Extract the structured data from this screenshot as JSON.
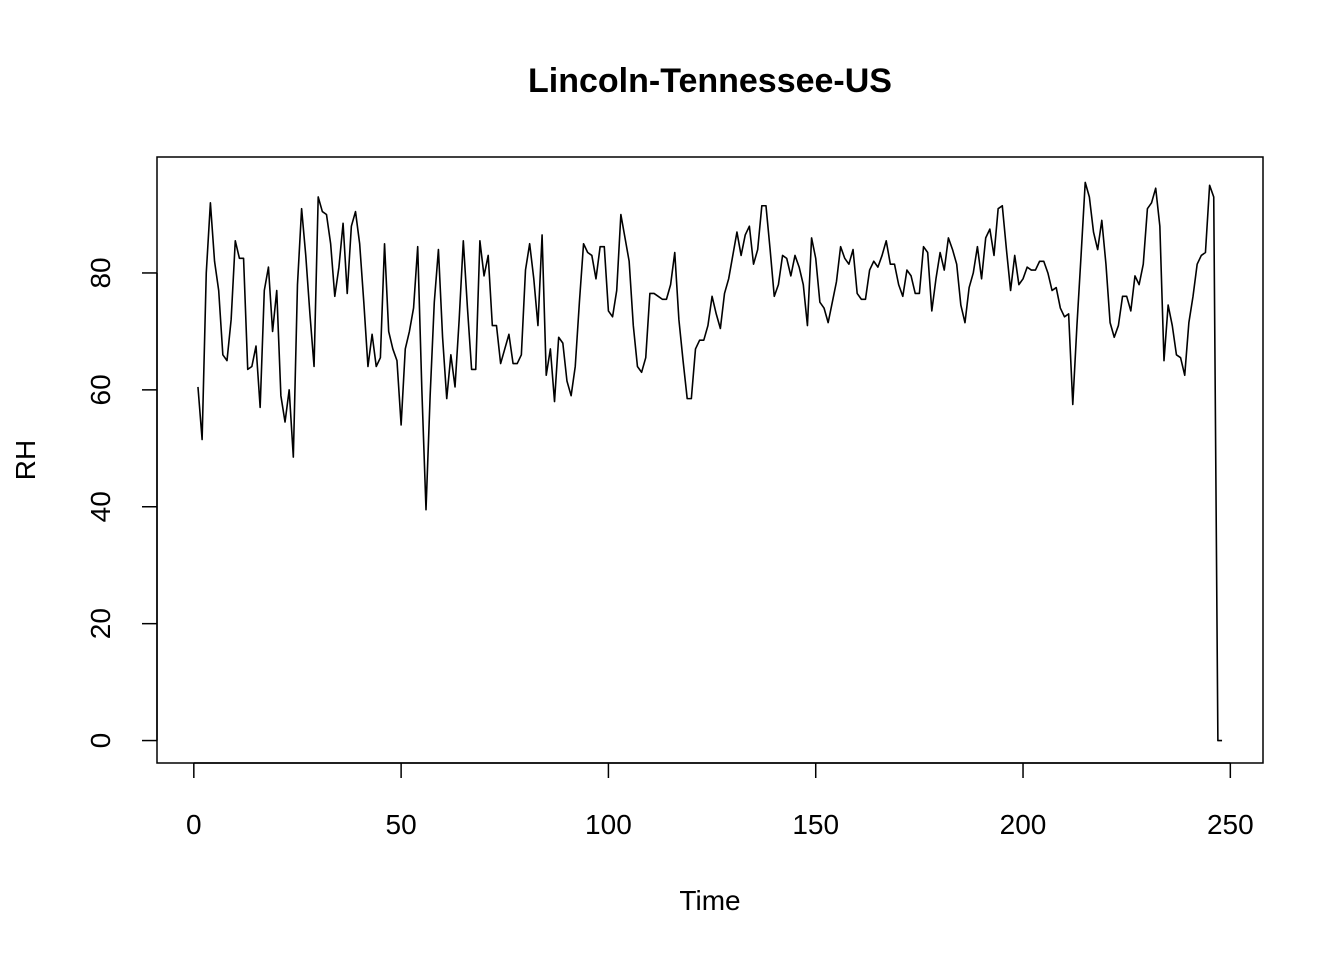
{
  "chart_data": {
    "type": "line",
    "title": "Lincoln-Tennessee-US",
    "x_label": "Time",
    "y_label": "RH",
    "x": [
      1,
      2,
      3,
      4,
      5,
      6,
      7,
      8,
      9,
      10,
      11,
      12,
      13,
      14,
      15,
      16,
      17,
      18,
      19,
      20,
      21,
      22,
      23,
      24,
      25,
      26,
      27,
      28,
      29,
      30,
      31,
      32,
      33,
      34,
      35,
      36,
      37,
      38,
      39,
      40,
      41,
      42,
      43,
      44,
      45,
      46,
      47,
      48,
      49,
      50,
      51,
      52,
      53,
      54,
      55,
      56,
      57,
      58,
      59,
      60,
      61,
      62,
      63,
      64,
      65,
      66,
      67,
      68,
      69,
      70,
      71,
      72,
      73,
      74,
      75,
      76,
      77,
      78,
      79,
      80,
      81,
      82,
      83,
      84,
      85,
      86,
      87,
      88,
      89,
      90,
      91,
      92,
      93,
      94,
      95,
      96,
      97,
      98,
      99,
      100,
      101,
      102,
      103,
      104,
      105,
      106,
      107,
      108,
      109,
      110,
      111,
      112,
      113,
      114,
      115,
      116,
      117,
      118,
      119,
      120,
      121,
      122,
      123,
      124,
      125,
      126,
      127,
      128,
      129,
      130,
      131,
      132,
      133,
      134,
      135,
      136,
      137,
      138,
      139,
      140,
      141,
      142,
      143,
      144,
      145,
      146,
      147,
      148,
      149,
      150,
      151,
      152,
      153,
      154,
      155,
      156,
      157,
      158,
      159,
      160,
      161,
      162,
      163,
      164,
      165,
      166,
      167,
      168,
      169,
      170,
      171,
      172,
      173,
      174,
      175,
      176,
      177,
      178,
      179,
      180,
      181,
      182,
      183,
      184,
      185,
      186,
      187,
      188,
      189,
      190,
      191,
      192,
      193,
      194,
      195,
      196,
      197,
      198,
      199,
      200,
      201,
      202,
      203,
      204,
      205,
      206,
      207,
      208,
      209,
      210,
      211,
      212,
      213,
      214,
      215,
      216,
      217,
      218,
      219,
      220,
      221,
      222,
      223,
      224,
      225,
      226,
      227,
      228,
      229,
      230,
      231,
      232,
      233,
      234,
      235,
      236,
      237,
      238,
      239,
      240,
      241,
      242,
      243,
      244,
      245,
      246,
      247,
      248
    ],
    "values": [
      60.5,
      51.5,
      80,
      92,
      82,
      77,
      66,
      65,
      72,
      85.5,
      82.5,
      82.5,
      63.5,
      64,
      67.5,
      57,
      77,
      81,
      70,
      77,
      59,
      54.5,
      60,
      48.5,
      78,
      91,
      83,
      73,
      64,
      93,
      90.5,
      90,
      85,
      76,
      81,
      88.5,
      76.5,
      88,
      90.5,
      85,
      75,
      64,
      69.5,
      64,
      65.5,
      85,
      70,
      67,
      65,
      54,
      67,
      70,
      74,
      84.5,
      60,
      39.5,
      59,
      75,
      84,
      69,
      58.5,
      66,
      60.5,
      72,
      85.5,
      74,
      63.5,
      63.5,
      85.5,
      79.5,
      83,
      71,
      71,
      64.5,
      67,
      69.5,
      64.5,
      64.5,
      66,
      80.5,
      85,
      79,
      71,
      86.5,
      62.5,
      67,
      58,
      69,
      68,
      61.5,
      59,
      64,
      75,
      85,
      83.5,
      83,
      79,
      84.5,
      84.5,
      73.5,
      72.5,
      77,
      90,
      86,
      82,
      71,
      64,
      63,
      65.5,
      76.5,
      76.5,
      76,
      75.5,
      75.5,
      78,
      83.5,
      72,
      65,
      58.5,
      58.5,
      67,
      68.5,
      68.5,
      71,
      76,
      73,
      70.5,
      76.5,
      79,
      83,
      87,
      83,
      86.5,
      88,
      81.5,
      84,
      91.5,
      91.5,
      84,
      76,
      78,
      83,
      82.5,
      79.5,
      83,
      81,
      78,
      71,
      86,
      82.5,
      75,
      74,
      71.5,
      75,
      78.5,
      84.5,
      82.5,
      81.5,
      84,
      76.5,
      75.5,
      75.5,
      80.5,
      82,
      81,
      83,
      85.5,
      81.5,
      81.5,
      78,
      76,
      80.5,
      79.5,
      76.5,
      76.5,
      84.5,
      83.5,
      73.5,
      79,
      83.5,
      80.5,
      86,
      84,
      81.5,
      74.5,
      71.5,
      77.5,
      80,
      84.5,
      79,
      86,
      87.5,
      83,
      91,
      91.5,
      84,
      77,
      83,
      78,
      79,
      81,
      80.5,
      80.5,
      82,
      82,
      80,
      77,
      77.5,
      74,
      72.5,
      73,
      57.5,
      71,
      83,
      95.5,
      93,
      87,
      84,
      89,
      81.5,
      71.5,
      69,
      71,
      76,
      76,
      73.5,
      79.5,
      78,
      81.5,
      91,
      92,
      94.5,
      88,
      65,
      74.5,
      71,
      66,
      65.5,
      62.5,
      71.5,
      76,
      81.5,
      83,
      83.5,
      95,
      93,
      0,
      0
    ],
    "color": "#000000",
    "xlim": [
      -8.88,
      257.88
    ],
    "ylim": [
      -3.84,
      99.84
    ],
    "xticks": [
      0,
      50,
      100,
      150,
      200,
      250
    ],
    "yticks": [
      0,
      20,
      40,
      60,
      80
    ]
  }
}
